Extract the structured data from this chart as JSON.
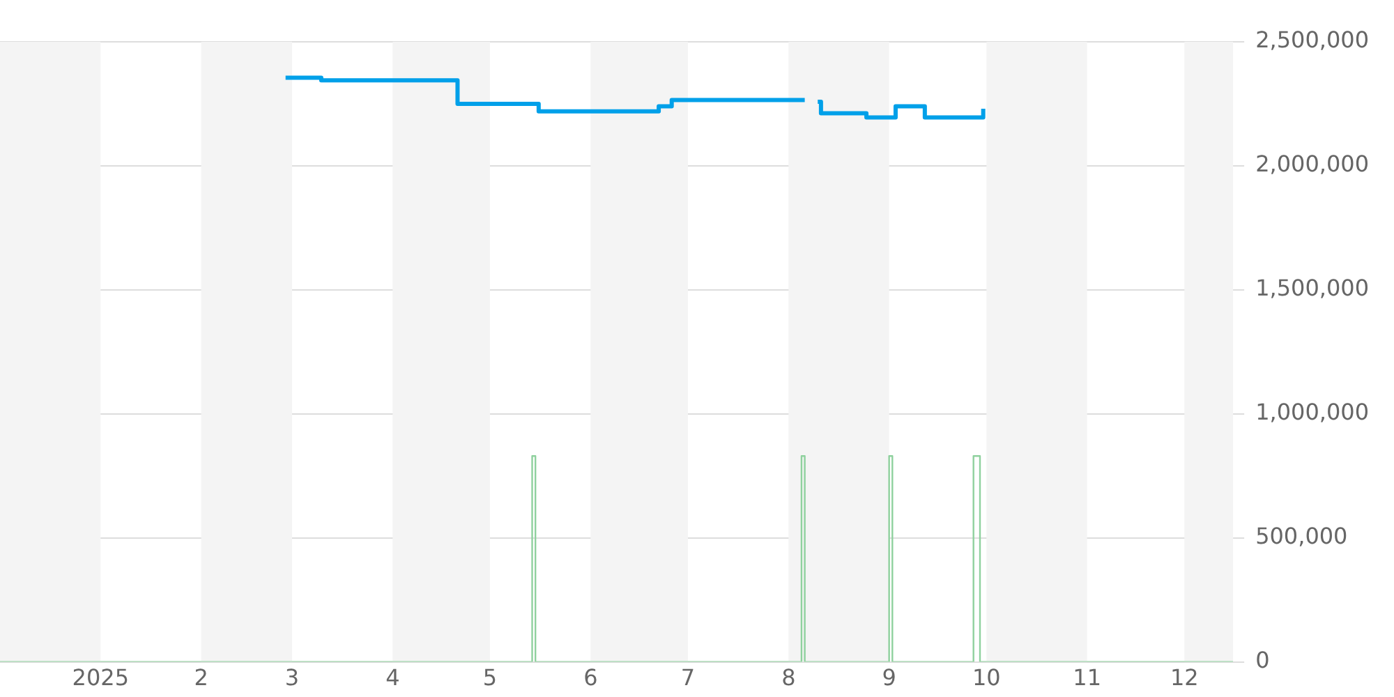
{
  "chart_data": {
    "type": "step",
    "series": [
      {
        "color": "#00a0e9",
        "x": [
          "2025-02-27",
          "2025-03-10",
          "2025-04-21",
          "2025-05-16",
          "2025-06-22",
          "2025-06-26",
          "2025-08-06",
          "2025-08-08",
          "2025-08-10",
          "2025-08-11",
          "2025-08-25",
          "2025-09-03",
          "2025-09-12",
          "2025-09-30"
        ],
        "values": [
          2355000,
          2345000,
          2250000,
          2220000,
          2240000,
          2265000,
          2265000,
          null,
          2258000,
          2212000,
          2195000,
          2240000,
          2195000,
          2230000
        ]
      },
      {
        "color": "#8fd19e",
        "x": [
          "2024-12-01",
          "2025-05-14",
          "2025-05-15",
          "2025-08-05",
          "2025-08-06",
          "2025-09-01",
          "2025-09-02",
          "2025-09-27",
          "2025-09-29",
          "2025-12-16"
        ],
        "values": [
          0,
          830000,
          0,
          830000,
          0,
          830000,
          0,
          830000,
          0,
          0
        ]
      }
    ],
    "xlim": [
      "2024-12-01",
      "2025-12-16"
    ],
    "xticks": [
      {
        "value": "2025-01-01",
        "label": "2025"
      },
      {
        "value": "2025-02-01",
        "label": "2"
      },
      {
        "value": "2025-03-01",
        "label": "3"
      },
      {
        "value": "2025-04-01",
        "label": "4"
      },
      {
        "value": "2025-05-01",
        "label": "5"
      },
      {
        "value": "2025-06-01",
        "label": "6"
      },
      {
        "value": "2025-07-01",
        "label": "7"
      },
      {
        "value": "2025-08-01",
        "label": "8"
      },
      {
        "value": "2025-09-01",
        "label": "9"
      },
      {
        "value": "2025-10-01",
        "label": "10"
      },
      {
        "value": "2025-11-01",
        "label": "11"
      },
      {
        "value": "2025-12-01",
        "label": "12"
      }
    ],
    "ylim": [
      0,
      2500000
    ],
    "yticks": [
      0,
      {
        "value": 500000,
        "label": "500,000"
      },
      {
        "value": 1000000,
        "label": "1,000,000"
      },
      {
        "value": 1500000,
        "label": "1,500,000"
      },
      {
        "value": 2000000,
        "label": "2,000,000"
      },
      {
        "value": 2500000,
        "label": "2,500,000"
      }
    ],
    "bands": [
      {
        "axis": "x",
        "from": "2024-12-01",
        "to": "2025-01-01",
        "color": "#f4f4f4"
      },
      {
        "axis": "x",
        "from": "2025-02-01",
        "to": "2025-03-01",
        "color": "#f4f4f4"
      },
      {
        "axis": "x",
        "from": "2025-04-01",
        "to": "2025-05-01",
        "color": "#f4f4f4"
      },
      {
        "axis": "x",
        "from": "2025-06-01",
        "to": "2025-07-01",
        "color": "#f4f4f4"
      },
      {
        "axis": "x",
        "from": "2025-08-01",
        "to": "2025-09-01",
        "color": "#f4f4f4"
      },
      {
        "axis": "x",
        "from": "2025-10-01",
        "to": "2025-11-01",
        "color": "#f4f4f4"
      },
      {
        "axis": "x",
        "from": "2025-12-01",
        "to": "2025-12-16",
        "color": "#f4f4f4"
      }
    ],
    "grid": "y",
    "legend": false
  }
}
